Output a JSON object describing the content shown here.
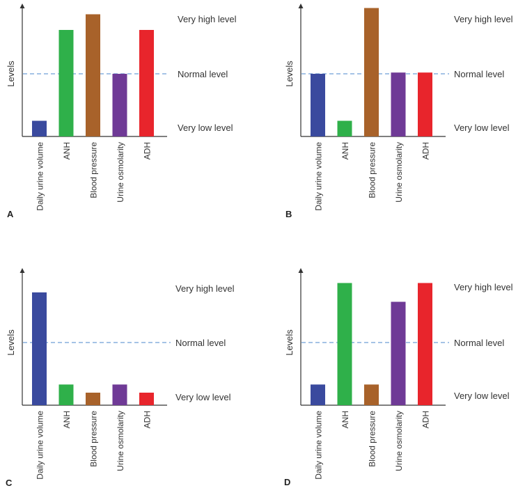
{
  "chart_data": [
    {
      "type": "bar",
      "panel": "A",
      "ylabel": "Levels",
      "levels": [
        "Very high level",
        "Normal level",
        "Very low level"
      ],
      "categories": [
        "Daily urine volume",
        "ANH",
        "Blood pressure",
        "Urine osmolarity",
        "ADH"
      ],
      "values": [
        0.25,
        1.7,
        1.95,
        1.0,
        1.7
      ],
      "ylim": [
        0,
        2.2
      ]
    },
    {
      "type": "bar",
      "panel": "B",
      "ylabel": "Levels",
      "levels": [
        "Very high level",
        "Normal level",
        "Very low level"
      ],
      "categories": [
        "Daily urine volume",
        "ANH",
        "Blood pressure",
        "Urine osmolarity",
        "ADH"
      ],
      "values": [
        1.0,
        0.25,
        2.05,
        1.02,
        1.02
      ],
      "ylim": [
        0,
        2.2
      ]
    },
    {
      "type": "bar",
      "panel": "C",
      "ylabel": "Levels",
      "levels": [
        "Very high level",
        "Normal level",
        "Very low level"
      ],
      "categories": [
        "Daily urine volume",
        "ANH",
        "Blood pressure",
        "Urine osmolarity",
        "ADH"
      ],
      "values": [
        1.8,
        0.33,
        0.2,
        0.33,
        0.2
      ],
      "ylim": [
        0,
        2.2
      ]
    },
    {
      "type": "bar",
      "panel": "D",
      "ylabel": "Levels",
      "levels": [
        "Very high level",
        "Normal level",
        "Very low level"
      ],
      "categories": [
        "Daily urine volume",
        "ANH",
        "Blood pressure",
        "Urine osmolarity",
        "ADH"
      ],
      "values": [
        0.33,
        1.95,
        0.33,
        1.65,
        1.95
      ],
      "ylim": [
        0,
        2.2
      ]
    }
  ],
  "colors": {
    "Daily urine volume": "#3a4a9e",
    "ANH": "#2fb04a",
    "Blood pressure": "#a8622a",
    "Urine osmolarity": "#6f3a96",
    "ADH": "#e8252c",
    "normal_line": "#6f9fd8",
    "axis": "#333333"
  }
}
